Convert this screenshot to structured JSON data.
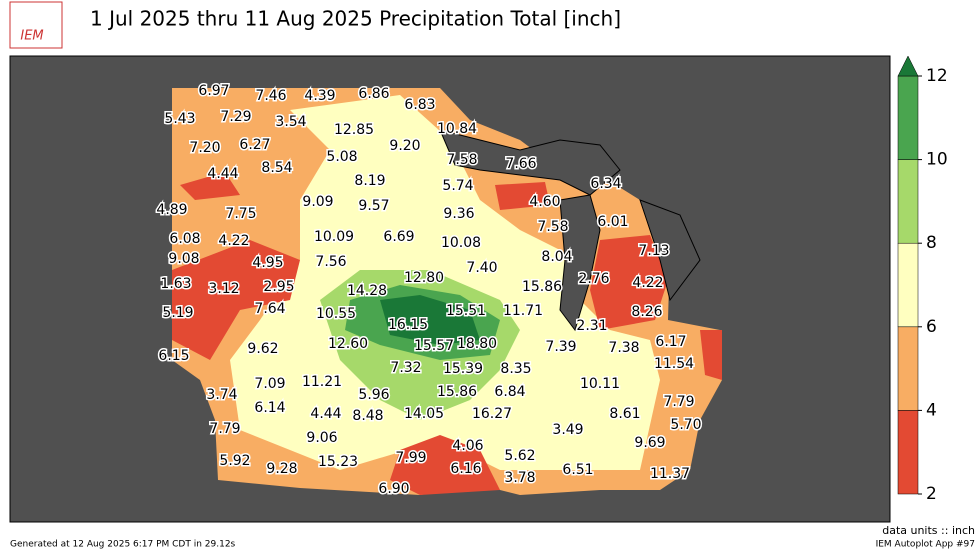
{
  "header": {
    "logo": "IEM",
    "title": "1 Jul 2025 thru 11 Aug 2025 Precipitation Total [inch]"
  },
  "colorbar": {
    "ticks": [
      2,
      4,
      6,
      8,
      10,
      12
    ],
    "colors": [
      "#e34a33",
      "#f8ad63",
      "#ffffc0",
      "#a6d96a",
      "#4aa54f"
    ],
    "extend_color": "#1a7837"
  },
  "stations": [
    "6.97",
    "7.46",
    "4.39",
    "6.86",
    "6.83",
    "5.43",
    "7.29",
    "3.54",
    "12.85",
    "10.84",
    "7.20",
    "6.27",
    "5.08",
    "9.20",
    "7.58",
    "7.66",
    "4.44",
    "8.54",
    "8.19",
    "5.74",
    "6.34",
    "4.89",
    "7.75",
    "9.09",
    "9.57",
    "9.36",
    "4.60",
    "7.58",
    "6.01",
    "6.08",
    "4.22",
    "10.09",
    "6.69",
    "10.08",
    "7.13",
    "9.08",
    "4.95",
    "7.56",
    "7.40",
    "8.04",
    "12.80",
    "2.76",
    "4.22",
    "1.63",
    "3.12",
    "2.95",
    "14.28",
    "15.86",
    "5.19",
    "7.64",
    "10.55",
    "15.51",
    "11.71",
    "8.26",
    "16.15",
    "2.31",
    "12.60",
    "15.57",
    "18.80",
    "7.39",
    "7.38",
    "6.17",
    "6.15",
    "9.62",
    "11.54",
    "7.32",
    "15.39",
    "8.35",
    "7.09",
    "11.21",
    "10.11",
    "3.74",
    "5.96",
    "15.86",
    "6.84",
    "7.79",
    "6.14",
    "4.44",
    "8.48",
    "14.05",
    "16.27",
    "8.61",
    "5.70",
    "7.79",
    "3.49",
    "9.06",
    "4.06",
    "9.69",
    "5.92",
    "15.23",
    "7.99",
    "5.62",
    "9.28",
    "6.16",
    "6.51",
    "11.37",
    "3.78",
    "6.90"
  ],
  "footer": {
    "units": "data units :: inch",
    "generated": "Generated at 12 Aug 2025 6:17 PM CDT in 29.12s",
    "app": "IEM Autoplot App #97"
  }
}
